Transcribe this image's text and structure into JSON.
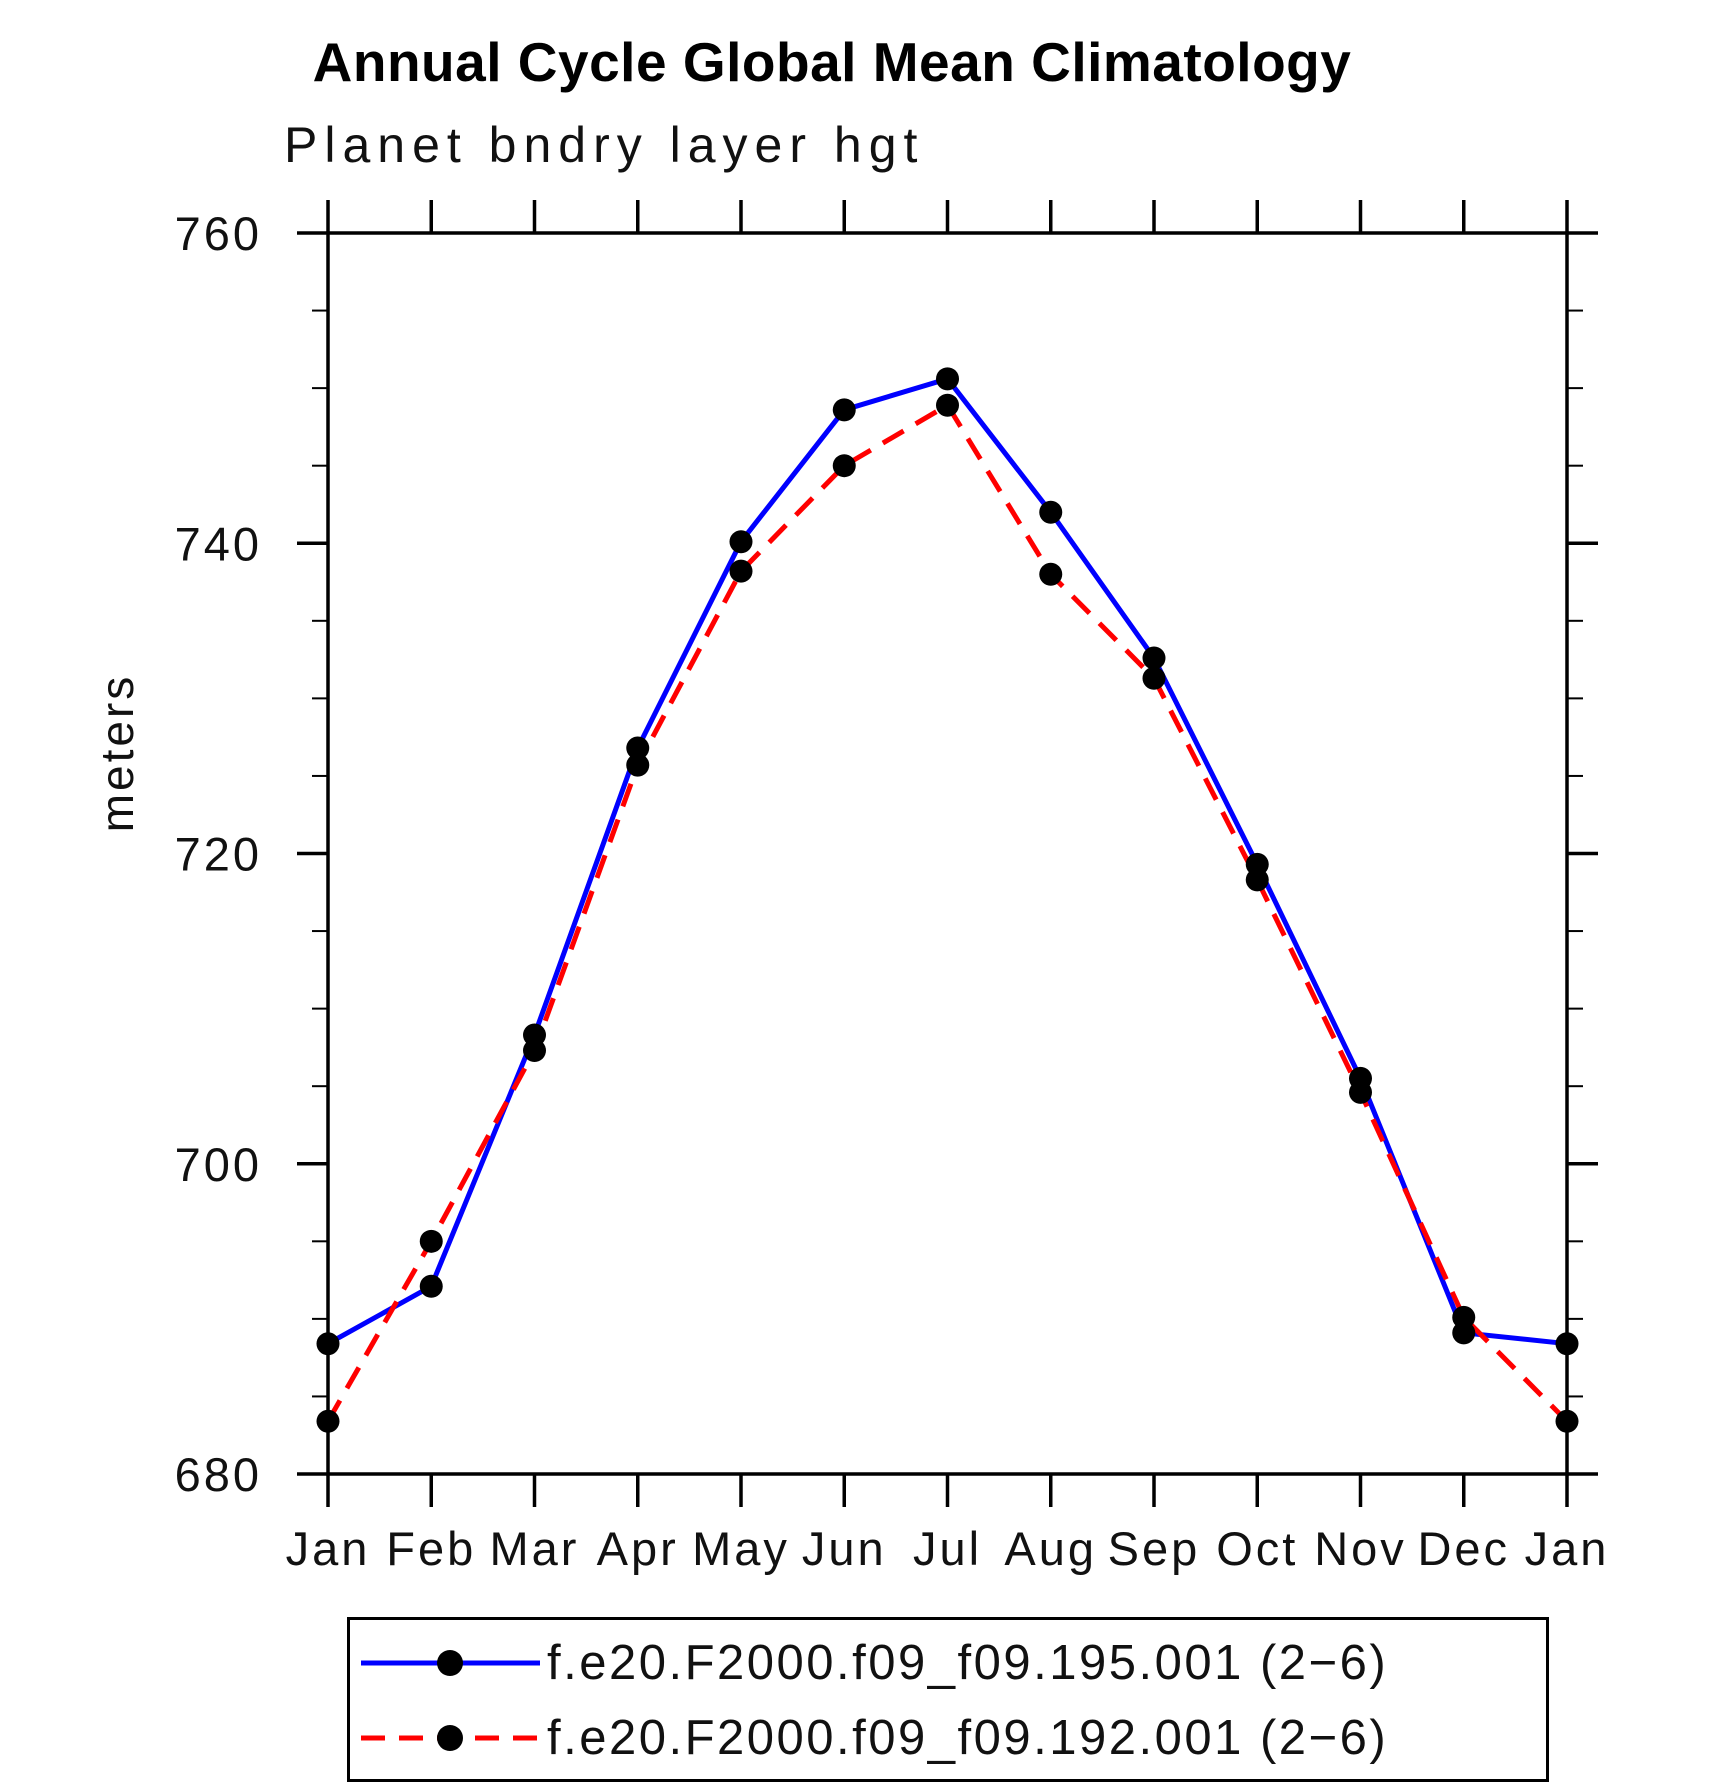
{
  "title": "Annual Cycle Global Mean Climatology",
  "subtitle": "Planet bndry layer hgt",
  "y_axis_title": "meters",
  "chart_data": {
    "type": "line",
    "title": "Annual Cycle Global Mean Climatology",
    "subtitle": "Planet bndry layer hgt",
    "ylabel": "meters",
    "xlabel": "",
    "categories": [
      "Jan",
      "Feb",
      "Mar",
      "Apr",
      "May",
      "Jun",
      "Jul",
      "Aug",
      "Sep",
      "Oct",
      "Nov",
      "Dec",
      "Jan"
    ],
    "series": [
      {
        "name": "f.e20.F2000.f09_f09.195.001 (2−6)",
        "color": "#0000ff",
        "style": "solid",
        "marker": "filled-circle",
        "marker_color": "#000000",
        "values": [
          688.4,
          692.1,
          708.3,
          726.8,
          740.1,
          748.6,
          750.6,
          742.0,
          732.6,
          719.3,
          705.5,
          689.1,
          688.4
        ]
      },
      {
        "name": "f.e20.F2000.f09_f09.192.001 (2−6)",
        "color": "#ff0000",
        "style": "dashed",
        "marker": "filled-circle",
        "marker_color": "#000000",
        "values": [
          683.4,
          695.0,
          707.3,
          725.7,
          738.2,
          745.0,
          748.9,
          738.0,
          731.3,
          718.3,
          704.6,
          690.1,
          683.4
        ]
      }
    ],
    "ylim": [
      680,
      760
    ],
    "y_major_ticks": [
      680,
      700,
      720,
      740,
      760
    ],
    "y_minor_step": 5,
    "grid": false,
    "legend_position": "bottom",
    "axis_color": "#000000"
  }
}
